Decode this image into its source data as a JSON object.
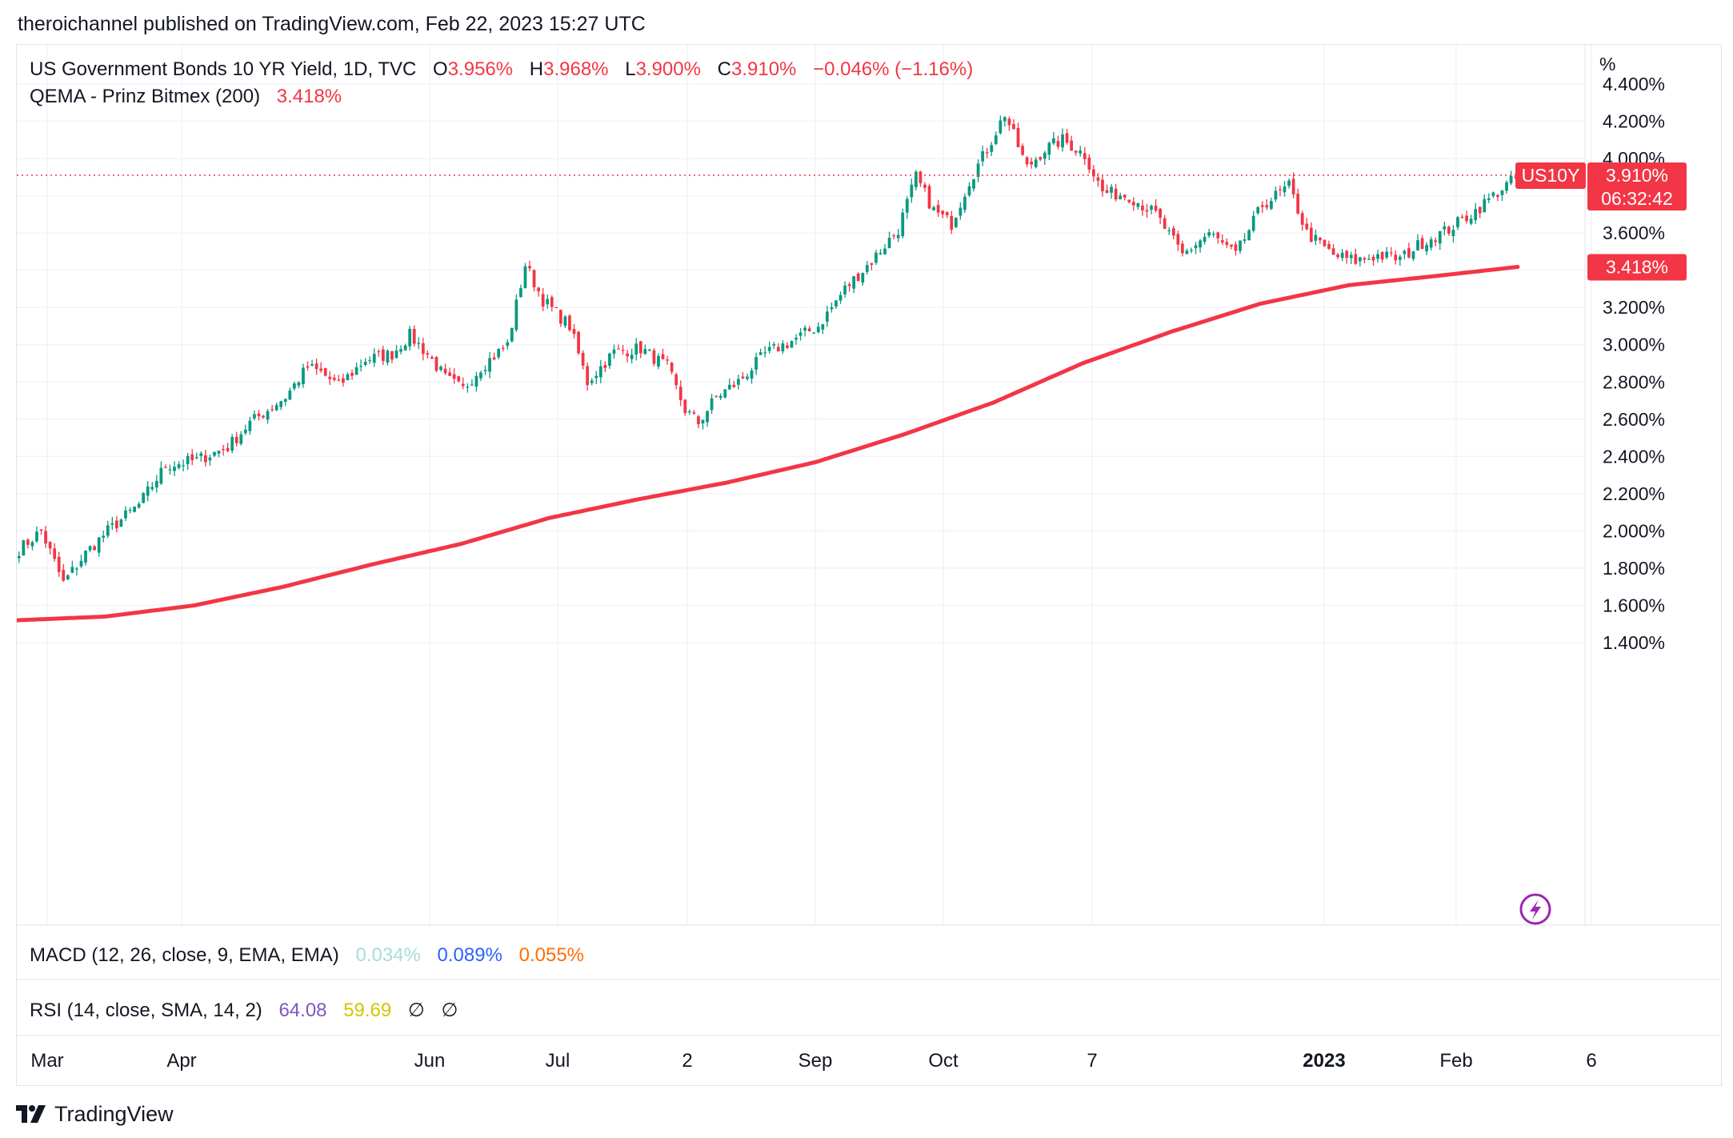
{
  "header": {
    "publisher_line": "theroichannel published on TradingView.com, Feb 22, 2023 15:27 UTC"
  },
  "legend": {
    "symbol": "US Government Bonds 10 YR Yield, 1D, TVC",
    "open_label": "O",
    "open": "3.956%",
    "high_label": "H",
    "high": "3.968%",
    "low_label": "L",
    "low": "3.900%",
    "close_label": "C",
    "close": "3.910%",
    "change": "−0.046% (−1.16%)",
    "indicator": "QEMA - Prinz Bitmex (200)",
    "indicator_value": "3.418%"
  },
  "price_axis": {
    "unit": "%"
  },
  "markers": {
    "last_symbol": "US10Y",
    "last_price": "3.910%",
    "countdown": "06:32:42",
    "ema_price": "3.418%"
  },
  "panes": {
    "macd": {
      "label": "MACD (12, 26, close, 9, EMA, EMA)",
      "v1": "0.034%",
      "v2": "0.089%",
      "v3": "0.055%"
    },
    "rsi": {
      "label": "RSI (14, close, SMA, 14, 2)",
      "v1": "64.08",
      "v2": "59.69",
      "v3": "∅",
      "v4": "∅"
    }
  },
  "footer": {
    "brand": "TradingView",
    "brand_icon": "tradingview-logo-icon"
  },
  "colors": {
    "up": "#089981",
    "down": "#f23645",
    "ema": "#f23645",
    "grid": "#f0f3fa",
    "text": "#131722",
    "macd1": "#a8dcd9",
    "macd2": "#2962ff",
    "macd3": "#ff6d00",
    "rsi1": "#7e57c2",
    "rsi2": "#f0e000"
  },
  "chart_data": {
    "type": "candlestick",
    "title": "US Government Bonds 10 YR Yield, 1D, TVC",
    "ylabel": "%",
    "ylim": [
      1.3,
      4.5
    ],
    "y_ticks": [
      "4.400%",
      "4.200%",
      "4.000%",
      "3.800%",
      "3.600%",
      "3.400%",
      "3.200%",
      "3.000%",
      "2.800%",
      "2.600%",
      "2.400%",
      "2.200%",
      "2.000%",
      "1.800%",
      "1.600%",
      "1.400%"
    ],
    "x_ticks": [
      "Mar",
      "Apr",
      "Jun",
      "Jul",
      "2",
      "Sep",
      "Oct",
      "7",
      "2023",
      "Feb",
      "6"
    ],
    "grid": true,
    "series": [
      {
        "name": "US Government Bonds 10 YR Yield, 1D, TVC",
        "close_path": [
          [
            0,
            1.9
          ],
          [
            5,
            2.0
          ],
          [
            10,
            1.72
          ],
          [
            15,
            1.88
          ],
          [
            20,
            2.0
          ],
          [
            27,
            2.14
          ],
          [
            33,
            2.35
          ],
          [
            40,
            2.38
          ],
          [
            47,
            2.45
          ],
          [
            52,
            2.58
          ],
          [
            60,
            2.72
          ],
          [
            65,
            2.88
          ],
          [
            68,
            2.85
          ],
          [
            72,
            2.78
          ],
          [
            78,
            2.92
          ],
          [
            84,
            2.95
          ],
          [
            88,
            3.05
          ],
          [
            92,
            2.95
          ],
          [
            96,
            2.82
          ],
          [
            100,
            2.76
          ],
          [
            104,
            2.88
          ],
          [
            110,
            3.0
          ],
          [
            114,
            3.43
          ],
          [
            118,
            3.24
          ],
          [
            124,
            3.1
          ],
          [
            128,
            2.8
          ],
          [
            134,
            2.96
          ],
          [
            140,
            2.98
          ],
          [
            146,
            2.88
          ],
          [
            150,
            2.65
          ],
          [
            153,
            2.58
          ],
          [
            157,
            2.72
          ],
          [
            162,
            2.8
          ],
          [
            168,
            2.95
          ],
          [
            174,
            3.02
          ],
          [
            180,
            3.1
          ],
          [
            186,
            3.3
          ],
          [
            192,
            3.45
          ],
          [
            198,
            3.62
          ],
          [
            202,
            3.9
          ],
          [
            206,
            3.72
          ],
          [
            210,
            3.65
          ],
          [
            214,
            3.88
          ],
          [
            218,
            4.05
          ],
          [
            222,
            4.24
          ],
          [
            227,
            3.95
          ],
          [
            231,
            4.05
          ],
          [
            235,
            4.1
          ],
          [
            240,
            4.02
          ],
          [
            244,
            3.82
          ],
          [
            250,
            3.8
          ],
          [
            256,
            3.7
          ],
          [
            262,
            3.48
          ],
          [
            268,
            3.6
          ],
          [
            274,
            3.48
          ],
          [
            280,
            3.75
          ],
          [
            286,
            3.85
          ],
          [
            290,
            3.6
          ],
          [
            296,
            3.48
          ],
          [
            301,
            3.45
          ],
          [
            306,
            3.48
          ],
          [
            311,
            3.46
          ],
          [
            316,
            3.55
          ],
          [
            322,
            3.62
          ],
          [
            328,
            3.72
          ],
          [
            334,
            3.84
          ],
          [
            338,
            3.91
          ]
        ]
      },
      {
        "name": "QEMA - Prinz Bitmex (200)",
        "path": [
          [
            0,
            1.52
          ],
          [
            20,
            1.54
          ],
          [
            40,
            1.6
          ],
          [
            60,
            1.7
          ],
          [
            80,
            1.82
          ],
          [
            100,
            1.93
          ],
          [
            120,
            2.07
          ],
          [
            140,
            2.17
          ],
          [
            160,
            2.26
          ],
          [
            180,
            2.37
          ],
          [
            200,
            2.52
          ],
          [
            220,
            2.69
          ],
          [
            240,
            2.9
          ],
          [
            260,
            3.07
          ],
          [
            280,
            3.22
          ],
          [
            300,
            3.32
          ],
          [
            320,
            3.37
          ],
          [
            338,
            3.418
          ]
        ]
      }
    ],
    "last_close": 3.91,
    "ema_last": 3.418
  }
}
